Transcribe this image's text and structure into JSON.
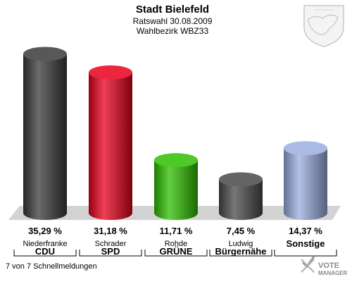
{
  "header": {
    "title": "Stadt Bielefeld",
    "subtitle": "Ratswahl 30.08.2009",
    "district": "Wahlbezirk WBZ33"
  },
  "footer": {
    "reports": "7 von 7 Schnellmeldungen",
    "brand_line1": "VOTE",
    "brand_line2": "MANAGER"
  },
  "chart_data": {
    "type": "bar",
    "unit": "%",
    "ylim": [
      0,
      36
    ],
    "categories": [
      "CDU",
      "SPD",
      "GRÜNE",
      "Bürgernähe",
      "Sonstige"
    ],
    "candidates": [
      "Niederfranke",
      "Schrader",
      "Rohde",
      "Ludwig",
      ""
    ],
    "values": [
      35.29,
      31.18,
      11.71,
      7.45,
      14.37
    ],
    "value_labels": [
      "35,29 %",
      "31,18 %",
      "11,71 %",
      "7,45 %",
      "14,37 %"
    ],
    "colors": [
      "#3a3a3a",
      "#e8001c",
      "#2fc000",
      "#4a4a4a",
      "#9aaee0"
    ]
  }
}
